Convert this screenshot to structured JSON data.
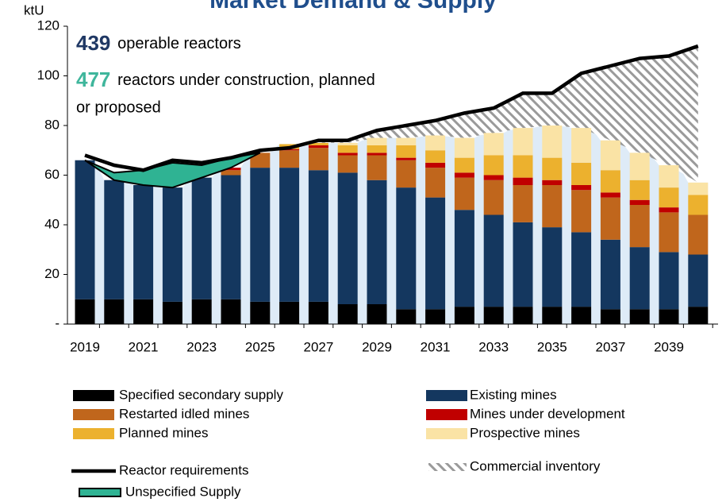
{
  "chart_data": {
    "type": "bar",
    "title": "Market Demand & Supply",
    "y_label": "ktU",
    "annotations": [
      {
        "number": "439",
        "text": "operable reactors"
      },
      {
        "number": "477",
        "text": "reactors under construction, planned"
      },
      {
        "text": "or proposed"
      }
    ],
    "categories": [
      "2019",
      null,
      "2021",
      null,
      "2023",
      null,
      "2025",
      null,
      "2027",
      null,
      "2029",
      null,
      "2031",
      null,
      "2033",
      null,
      "2035",
      null,
      "2037",
      null,
      "2039",
      null
    ],
    "ylim": [
      0,
      120
    ],
    "yticks": [
      {
        "value": 0,
        "label": "-"
      },
      20,
      40,
      60,
      80,
      100,
      120
    ],
    "series": [
      {
        "name": "Specified secondary supply",
        "kind": "bar",
        "color": "#000000",
        "values": [
          10,
          10,
          10,
          9,
          10,
          10,
          9,
          9,
          9,
          8,
          8,
          6,
          6,
          7,
          7,
          7,
          7,
          7,
          6,
          6,
          6,
          7
        ]
      },
      {
        "name": "Existing mines",
        "kind": "bar",
        "color": "#14375f",
        "values": [
          56,
          48,
          46,
          46,
          49,
          50,
          54,
          54,
          53,
          53,
          50,
          49,
          45,
          39,
          37,
          34,
          32,
          30,
          28,
          25,
          23,
          21
        ]
      },
      {
        "name": "Restarted idled mines",
        "kind": "bar",
        "color": "#c0661c",
        "values": [
          0,
          0,
          0,
          0,
          0,
          2,
          6,
          7,
          9,
          7,
          10,
          11,
          12,
          13,
          14,
          15,
          17,
          17,
          17,
          17,
          16,
          16
        ]
      },
      {
        "name": "Mines under development",
        "kind": "bar",
        "color": "#c00000",
        "values": [
          0,
          0,
          0,
          0,
          0,
          1,
          0,
          0.5,
          1,
          1,
          1,
          1,
          2,
          2,
          2,
          3,
          2,
          2,
          2,
          2,
          2,
          0
        ]
      },
      {
        "name": "Planned mines",
        "kind": "bar",
        "color": "#ecb12e",
        "values": [
          0,
          0,
          0,
          0,
          0,
          0,
          0,
          2,
          1,
          3,
          3,
          5,
          5,
          6,
          8,
          9,
          9,
          9,
          9,
          8,
          8,
          8
        ]
      },
      {
        "name": "Prospective mines",
        "kind": "bar",
        "color": "#fae3a5",
        "values": [
          0,
          0,
          0,
          0,
          0,
          0,
          0,
          0,
          0,
          1,
          3,
          3,
          6,
          8,
          9,
          11,
          13,
          14,
          12,
          11,
          9,
          5
        ]
      },
      {
        "name": "Reactor requirements",
        "kind": "line",
        "color": "#000000",
        "values": [
          68,
          64,
          62,
          66,
          65,
          67,
          70,
          71,
          74,
          74,
          78,
          80,
          82,
          85,
          87,
          93,
          93,
          101,
          104,
          107,
          108,
          112
        ]
      },
      {
        "name": "Commercial inventory",
        "kind": "hatch",
        "color": "#9a9a9a"
      },
      {
        "name": "Unspecified Supply",
        "kind": "area",
        "color": "#2fb393",
        "values": [
          0,
          3,
          6,
          10,
          5,
          4,
          0,
          null,
          null,
          null,
          null,
          null,
          null,
          null,
          null,
          null,
          null,
          null,
          null,
          null,
          null,
          null
        ]
      }
    ]
  }
}
